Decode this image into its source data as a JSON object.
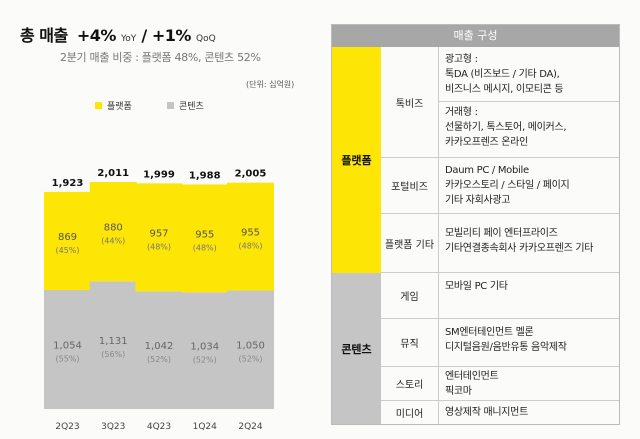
{
  "headline": {
    "title": "총 매출",
    "yoy_value": "+4%",
    "yoy_label": "YoY",
    "sep": "/",
    "qoq_value": "+1%",
    "qoq_label": "QoQ"
  },
  "subtitle": "2분기 매출 비중 : 플랫폼 48%, 콘텐츠 52%",
  "unit_label": "(단위: 십억원)",
  "colors": {
    "platform": "#fde505",
    "content": "#c5c5c5",
    "table_header": "#a7a7a7"
  },
  "chart_data": {
    "type": "bar",
    "stacked": true,
    "categories": [
      "2Q23",
      "3Q23",
      "4Q23",
      "1Q24",
      "2Q24"
    ],
    "series": [
      {
        "name": "콘텐츠",
        "values": [
          1054,
          1131,
          1042,
          1034,
          1050
        ],
        "pct_labels": [
          "(55%)",
          "(56%)",
          "(52%)",
          "(52%)",
          "(52%)"
        ],
        "labels": [
          "1,054",
          "1,131",
          "1,042",
          "1,034",
          "1,050"
        ]
      },
      {
        "name": "플랫폼",
        "values": [
          869,
          880,
          957,
          955,
          955
        ],
        "pct_labels": [
          "(45%)",
          "(44%)",
          "(48%)",
          "(48%)",
          "(48%)"
        ],
        "labels": [
          "869",
          "880",
          "957",
          "955",
          "955"
        ]
      }
    ],
    "totals": [
      1923,
      2011,
      1999,
      1988,
      2005
    ],
    "total_labels": [
      "1,923",
      "2,011",
      "1,999",
      "1,988",
      "2,005"
    ],
    "legend": [
      "플랫폼",
      "콘텐츠"
    ],
    "legend_position": "top",
    "ylim": [
      0,
      2011
    ],
    "grid": false
  },
  "table": {
    "header": "매출 구성",
    "groups": [
      {
        "name": "플랫폼",
        "rows": [
          {
            "sub": "톡비즈",
            "blocks": [
              [
                "광고형 :",
                "톡DA (비즈보드 / 기타 DA),",
                "비즈니스 메시지, 이모티콘 등"
              ],
              [
                "거래형 :",
                "선물하기, 톡스토어, 메이커스,",
                "카카오프렌즈 온라인"
              ]
            ]
          },
          {
            "sub": "포털비즈",
            "blocks": [
              [
                "Daum PC / Mobile",
                "카카오스토리 / 스타일 / 페이지",
                "기타 자회사광고"
              ]
            ]
          },
          {
            "sub": "플랫폼 기타",
            "blocks": [
              [
                "모빌리티    페이    엔터프라이즈",
                "기타연결종속회사    카카오프렌즈 기타"
              ]
            ]
          }
        ]
      },
      {
        "name": "콘텐츠",
        "rows": [
          {
            "sub": "게임",
            "blocks": [
              [
                "모바일     PC     기타"
              ]
            ]
          },
          {
            "sub": "뮤직",
            "blocks": [
              [
                "SM엔터테인먼트   멜론",
                "디지털음원/음반유통   음악제작"
              ]
            ]
          },
          {
            "sub": "스토리",
            "blocks": [
              [
                "엔터테인먼트",
                "픽코마"
              ]
            ]
          },
          {
            "sub": "미디어",
            "blocks": [
              [
                "영상제작     매니지먼트"
              ]
            ]
          }
        ]
      }
    ]
  }
}
